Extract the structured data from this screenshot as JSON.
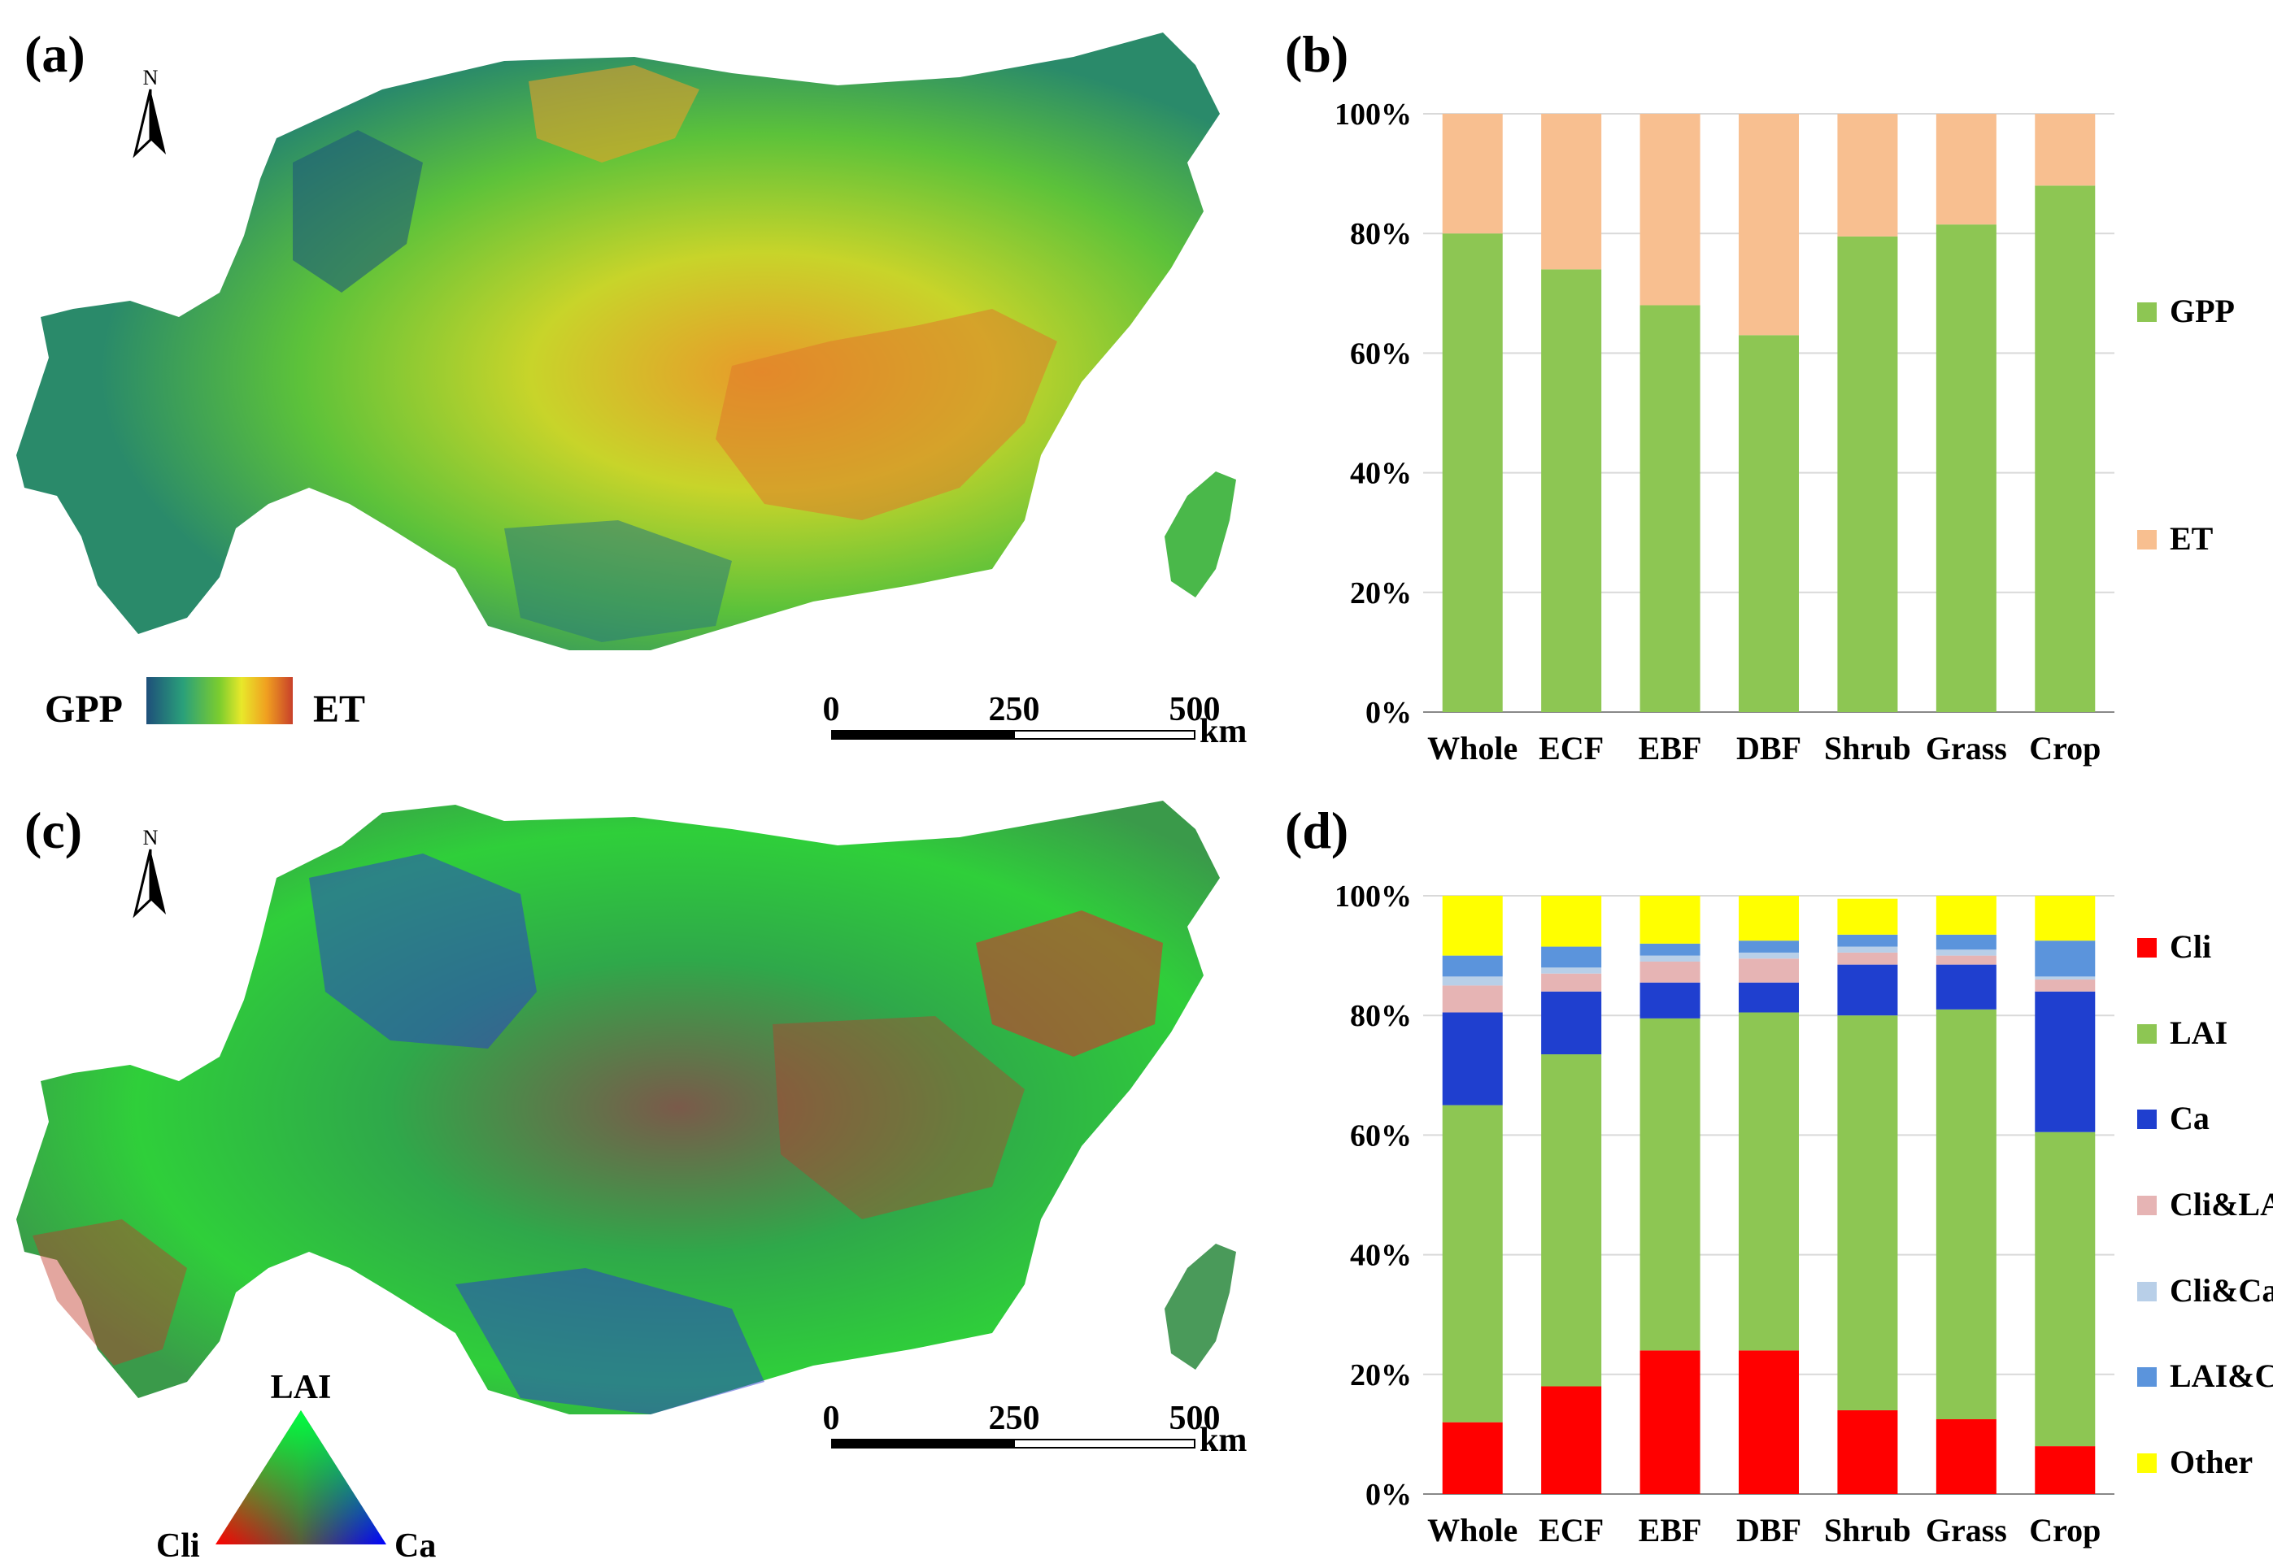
{
  "panels": {
    "a": {
      "label": "(a)",
      "north": "N",
      "legend_left": "GPP",
      "legend_right": "ET",
      "scale_ticks": [
        "0",
        "250",
        "500"
      ],
      "scale_unit": "km"
    },
    "b": {
      "label": "(b)"
    },
    "c": {
      "label": "(c)",
      "north": "N",
      "tri_top": "LAI",
      "tri_left": "Cli",
      "tri_right": "Ca",
      "scale_ticks": [
        "0",
        "250",
        "500"
      ],
      "scale_unit": "km"
    },
    "d": {
      "label": "(d)"
    }
  },
  "colors": {
    "GPP": "#8dc653",
    "ET": "#f8bf90",
    "Cli": "#ff0000",
    "LAI": "#8dc653",
    "Ca": "#1f3fcf",
    "Cli&LAI": "#e6b4b4",
    "Cli&Ca": "#b8cfe8",
    "LAI&Ca": "#5b94dc",
    "Other": "#ffff00"
  },
  "chart_data": [
    {
      "type": "bar",
      "stacked": true,
      "percent": true,
      "title": "",
      "categories": [
        "Whole",
        "ECF",
        "EBF",
        "DBF",
        "Shrub",
        "Grass",
        "Crop"
      ],
      "yticks": [
        "0%",
        "20%",
        "40%",
        "60%",
        "80%",
        "100%"
      ],
      "ylim": [
        0,
        100
      ],
      "legend_position": "right",
      "series": [
        {
          "name": "GPP",
          "values": [
            80,
            74,
            68,
            63,
            79.5,
            81.5,
            88
          ]
        },
        {
          "name": "ET",
          "values": [
            20,
            26,
            32,
            37,
            20.5,
            18.5,
            12
          ]
        }
      ]
    },
    {
      "type": "bar",
      "stacked": true,
      "percent": true,
      "title": "",
      "categories": [
        "Whole",
        "ECF",
        "EBF",
        "DBF",
        "Shrub",
        "Grass",
        "Crop"
      ],
      "yticks": [
        "0%",
        "20%",
        "40%",
        "60%",
        "80%",
        "100%"
      ],
      "ylim": [
        0,
        100
      ],
      "legend_position": "right",
      "series": [
        {
          "name": "Cli",
          "values": [
            12,
            18,
            24,
            24,
            14,
            12.5,
            8
          ]
        },
        {
          "name": "LAI",
          "values": [
            53,
            55.5,
            55.5,
            56.5,
            66,
            68.5,
            52.5
          ]
        },
        {
          "name": "Ca",
          "values": [
            15.5,
            10.5,
            6,
            5,
            8.5,
            7.5,
            23.5
          ]
        },
        {
          "name": "Cli&LAI",
          "values": [
            4.5,
            3,
            3.5,
            4,
            2,
            1.5,
            2
          ]
        },
        {
          "name": "Cli&Ca",
          "values": [
            1.5,
            1,
            1,
            1,
            1,
            1,
            0.5
          ]
        },
        {
          "name": "LAI&Ca",
          "values": [
            3.5,
            3.5,
            2,
            2,
            2,
            2.5,
            6
          ]
        },
        {
          "name": "Other",
          "values": [
            10,
            8.5,
            8,
            7.5,
            6,
            6.5,
            7.5
          ]
        }
      ]
    }
  ]
}
